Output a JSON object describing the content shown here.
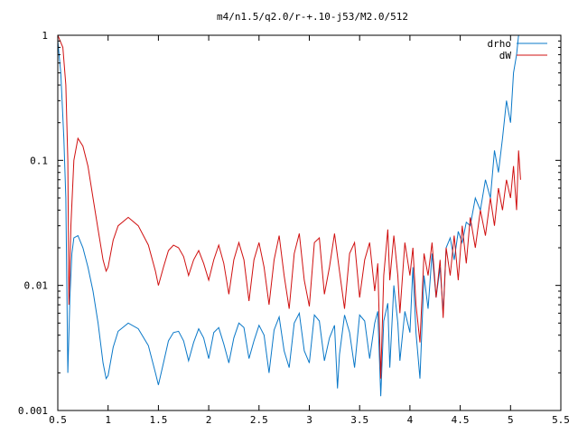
{
  "chart_data": {
    "type": "line",
    "title": "m4/n1.5/q2.0/r-+.10-j53/M2.0/512",
    "xlabel": "",
    "ylabel": "",
    "xlim": [
      0.5,
      5.5
    ],
    "ylim": [
      0.001,
      1
    ],
    "y_scale": "log",
    "grid": false,
    "legend_position": "top-right",
    "x_tick_labels": [
      "0.5",
      "1",
      "1.5",
      "2",
      "2.5",
      "3",
      "3.5",
      "4",
      "4.5",
      "5",
      "5.5"
    ],
    "y_tick_labels": [
      "0.001",
      "0.01",
      "0.1",
      "1"
    ],
    "series": [
      {
        "name": "drho",
        "color": "#0a78c8",
        "points": [
          [
            0.5,
            0.9
          ],
          [
            0.53,
            0.5
          ],
          [
            0.56,
            0.15
          ],
          [
            0.58,
            0.05
          ],
          [
            0.6,
            0.002
          ],
          [
            0.62,
            0.008
          ],
          [
            0.64,
            0.018
          ],
          [
            0.66,
            0.024
          ],
          [
            0.7,
            0.025
          ],
          [
            0.75,
            0.02
          ],
          [
            0.8,
            0.014
          ],
          [
            0.85,
            0.009
          ],
          [
            0.9,
            0.005
          ],
          [
            0.95,
            0.0024
          ],
          [
            0.98,
            0.0018
          ],
          [
            1.0,
            0.0019
          ],
          [
            1.05,
            0.0032
          ],
          [
            1.1,
            0.0043
          ],
          [
            1.2,
            0.005
          ],
          [
            1.3,
            0.0045
          ],
          [
            1.4,
            0.0033
          ],
          [
            1.47,
            0.002
          ],
          [
            1.5,
            0.0016
          ],
          [
            1.55,
            0.0024
          ],
          [
            1.6,
            0.0036
          ],
          [
            1.65,
            0.0042
          ],
          [
            1.7,
            0.0043
          ],
          [
            1.75,
            0.0036
          ],
          [
            1.8,
            0.0025
          ],
          [
            1.85,
            0.0035
          ],
          [
            1.9,
            0.0045
          ],
          [
            1.95,
            0.0038
          ],
          [
            2.0,
            0.0026
          ],
          [
            2.05,
            0.0042
          ],
          [
            2.1,
            0.0046
          ],
          [
            2.15,
            0.0034
          ],
          [
            2.2,
            0.0024
          ],
          [
            2.25,
            0.0038
          ],
          [
            2.3,
            0.005
          ],
          [
            2.35,
            0.0046
          ],
          [
            2.4,
            0.0026
          ],
          [
            2.45,
            0.0036
          ],
          [
            2.5,
            0.0048
          ],
          [
            2.55,
            0.004
          ],
          [
            2.6,
            0.002
          ],
          [
            2.65,
            0.0044
          ],
          [
            2.7,
            0.0056
          ],
          [
            2.75,
            0.003
          ],
          [
            2.8,
            0.0022
          ],
          [
            2.85,
            0.005
          ],
          [
            2.9,
            0.006
          ],
          [
            2.95,
            0.003
          ],
          [
            3.0,
            0.0024
          ],
          [
            3.05,
            0.0058
          ],
          [
            3.1,
            0.0052
          ],
          [
            3.15,
            0.0025
          ],
          [
            3.2,
            0.0038
          ],
          [
            3.25,
            0.0048
          ],
          [
            3.28,
            0.0015
          ],
          [
            3.3,
            0.0028
          ],
          [
            3.35,
            0.0058
          ],
          [
            3.4,
            0.0042
          ],
          [
            3.45,
            0.0022
          ],
          [
            3.5,
            0.0058
          ],
          [
            3.55,
            0.0052
          ],
          [
            3.6,
            0.0026
          ],
          [
            3.65,
            0.005
          ],
          [
            3.68,
            0.0062
          ],
          [
            3.71,
            0.0013
          ],
          [
            3.74,
            0.0052
          ],
          [
            3.78,
            0.0072
          ],
          [
            3.8,
            0.0022
          ],
          [
            3.84,
            0.01
          ],
          [
            3.88,
            0.005
          ],
          [
            3.9,
            0.0025
          ],
          [
            3.95,
            0.0062
          ],
          [
            4.0,
            0.0042
          ],
          [
            4.03,
            0.014
          ],
          [
            4.06,
            0.0042
          ],
          [
            4.1,
            0.0018
          ],
          [
            4.14,
            0.012
          ],
          [
            4.18,
            0.0065
          ],
          [
            4.22,
            0.018
          ],
          [
            4.26,
            0.008
          ],
          [
            4.3,
            0.014
          ],
          [
            4.33,
            0.006
          ],
          [
            4.36,
            0.02
          ],
          [
            4.4,
            0.024
          ],
          [
            4.44,
            0.016
          ],
          [
            4.48,
            0.027
          ],
          [
            4.52,
            0.022
          ],
          [
            4.56,
            0.032
          ],
          [
            4.6,
            0.03
          ],
          [
            4.65,
            0.05
          ],
          [
            4.7,
            0.04
          ],
          [
            4.75,
            0.07
          ],
          [
            4.8,
            0.05
          ],
          [
            4.84,
            0.12
          ],
          [
            4.88,
            0.08
          ],
          [
            4.92,
            0.15
          ],
          [
            4.96,
            0.3
          ],
          [
            5.0,
            0.2
          ],
          [
            5.03,
            0.5
          ],
          [
            5.06,
            0.7
          ],
          [
            5.08,
            1.0
          ],
          [
            5.1,
            1.0
          ]
        ]
      },
      {
        "name": "dW",
        "color": "#d01010",
        "points": [
          [
            0.5,
            1.0
          ],
          [
            0.55,
            0.8
          ],
          [
            0.58,
            0.4
          ],
          [
            0.6,
            0.1
          ],
          [
            0.61,
            0.007
          ],
          [
            0.63,
            0.03
          ],
          [
            0.66,
            0.1
          ],
          [
            0.7,
            0.15
          ],
          [
            0.75,
            0.13
          ],
          [
            0.8,
            0.09
          ],
          [
            0.85,
            0.05
          ],
          [
            0.9,
            0.028
          ],
          [
            0.95,
            0.016
          ],
          [
            0.98,
            0.013
          ],
          [
            1.0,
            0.014
          ],
          [
            1.05,
            0.023
          ],
          [
            1.1,
            0.03
          ],
          [
            1.2,
            0.035
          ],
          [
            1.3,
            0.03
          ],
          [
            1.4,
            0.021
          ],
          [
            1.47,
            0.013
          ],
          [
            1.5,
            0.01
          ],
          [
            1.55,
            0.014
          ],
          [
            1.6,
            0.019
          ],
          [
            1.65,
            0.021
          ],
          [
            1.7,
            0.02
          ],
          [
            1.75,
            0.017
          ],
          [
            1.8,
            0.012
          ],
          [
            1.85,
            0.016
          ],
          [
            1.9,
            0.019
          ],
          [
            1.95,
            0.015
          ],
          [
            2.0,
            0.011
          ],
          [
            2.05,
            0.016
          ],
          [
            2.1,
            0.021
          ],
          [
            2.15,
            0.015
          ],
          [
            2.2,
            0.0085
          ],
          [
            2.25,
            0.016
          ],
          [
            2.3,
            0.022
          ],
          [
            2.35,
            0.016
          ],
          [
            2.4,
            0.0075
          ],
          [
            2.45,
            0.016
          ],
          [
            2.5,
            0.022
          ],
          [
            2.55,
            0.014
          ],
          [
            2.6,
            0.007
          ],
          [
            2.65,
            0.016
          ],
          [
            2.7,
            0.025
          ],
          [
            2.75,
            0.012
          ],
          [
            2.8,
            0.0065
          ],
          [
            2.85,
            0.018
          ],
          [
            2.9,
            0.026
          ],
          [
            2.95,
            0.011
          ],
          [
            3.0,
            0.0068
          ],
          [
            3.05,
            0.022
          ],
          [
            3.1,
            0.024
          ],
          [
            3.15,
            0.0085
          ],
          [
            3.2,
            0.014
          ],
          [
            3.25,
            0.026
          ],
          [
            3.3,
            0.013
          ],
          [
            3.35,
            0.0065
          ],
          [
            3.4,
            0.018
          ],
          [
            3.45,
            0.022
          ],
          [
            3.5,
            0.008
          ],
          [
            3.55,
            0.016
          ],
          [
            3.6,
            0.022
          ],
          [
            3.65,
            0.009
          ],
          [
            3.68,
            0.015
          ],
          [
            3.71,
            0.0018
          ],
          [
            3.74,
            0.012
          ],
          [
            3.78,
            0.028
          ],
          [
            3.8,
            0.011
          ],
          [
            3.84,
            0.025
          ],
          [
            3.88,
            0.012
          ],
          [
            3.9,
            0.006
          ],
          [
            3.95,
            0.022
          ],
          [
            4.0,
            0.012
          ],
          [
            4.03,
            0.02
          ],
          [
            4.06,
            0.007
          ],
          [
            4.1,
            0.0035
          ],
          [
            4.14,
            0.018
          ],
          [
            4.18,
            0.012
          ],
          [
            4.22,
            0.022
          ],
          [
            4.26,
            0.008
          ],
          [
            4.3,
            0.016
          ],
          [
            4.33,
            0.0055
          ],
          [
            4.36,
            0.02
          ],
          [
            4.4,
            0.012
          ],
          [
            4.44,
            0.025
          ],
          [
            4.48,
            0.011
          ],
          [
            4.52,
            0.03
          ],
          [
            4.56,
            0.015
          ],
          [
            4.6,
            0.035
          ],
          [
            4.65,
            0.02
          ],
          [
            4.7,
            0.04
          ],
          [
            4.75,
            0.025
          ],
          [
            4.8,
            0.05
          ],
          [
            4.84,
            0.03
          ],
          [
            4.88,
            0.06
          ],
          [
            4.92,
            0.04
          ],
          [
            4.96,
            0.07
          ],
          [
            5.0,
            0.05
          ],
          [
            5.03,
            0.09
          ],
          [
            5.06,
            0.04
          ],
          [
            5.08,
            0.12
          ],
          [
            5.1,
            0.07
          ]
        ]
      }
    ]
  }
}
